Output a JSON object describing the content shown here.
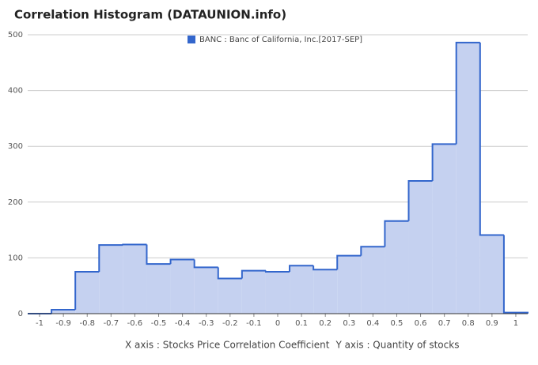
{
  "chart_data": {
    "type": "histogram",
    "title": "Correlation Histogram (DATAUNION.info)",
    "x_label": "X axis : Stocks Price Correlation Coefficient",
    "y_label": "Y axis : Quantity of stocks",
    "series": [
      {
        "name": "BANC : Banc of California, Inc.[2017-SEP]",
        "color": "#3366cc",
        "fill": "#c5d1f0",
        "values": [
          0,
          7,
          75,
          123,
          124,
          89,
          97,
          83,
          63,
          77,
          75,
          86,
          79,
          104,
          120,
          166,
          238,
          304,
          486,
          141,
          2
        ]
      }
    ],
    "bins": [
      -1.05,
      -0.95,
      -0.85,
      -0.75,
      -0.65,
      -0.55,
      -0.45,
      -0.35,
      -0.25,
      -0.15,
      -0.05,
      0.05,
      0.15,
      0.25,
      0.35,
      0.45,
      0.55,
      0.65,
      0.75,
      0.85,
      0.95,
      1.05
    ],
    "xlim": [
      -1.05,
      1.05
    ],
    "xticks": [
      -1,
      -0.9,
      -0.8,
      -0.7,
      -0.6,
      -0.5,
      -0.4,
      -0.3,
      -0.2,
      -0.1,
      0,
      0.1,
      0.2,
      0.3,
      0.4,
      0.5,
      0.6,
      0.7,
      0.8,
      0.9,
      1
    ],
    "ylim": [
      0,
      500
    ],
    "yticks": [
      0,
      100,
      200,
      300,
      400,
      500
    ],
    "grid": true,
    "legend": "top"
  }
}
